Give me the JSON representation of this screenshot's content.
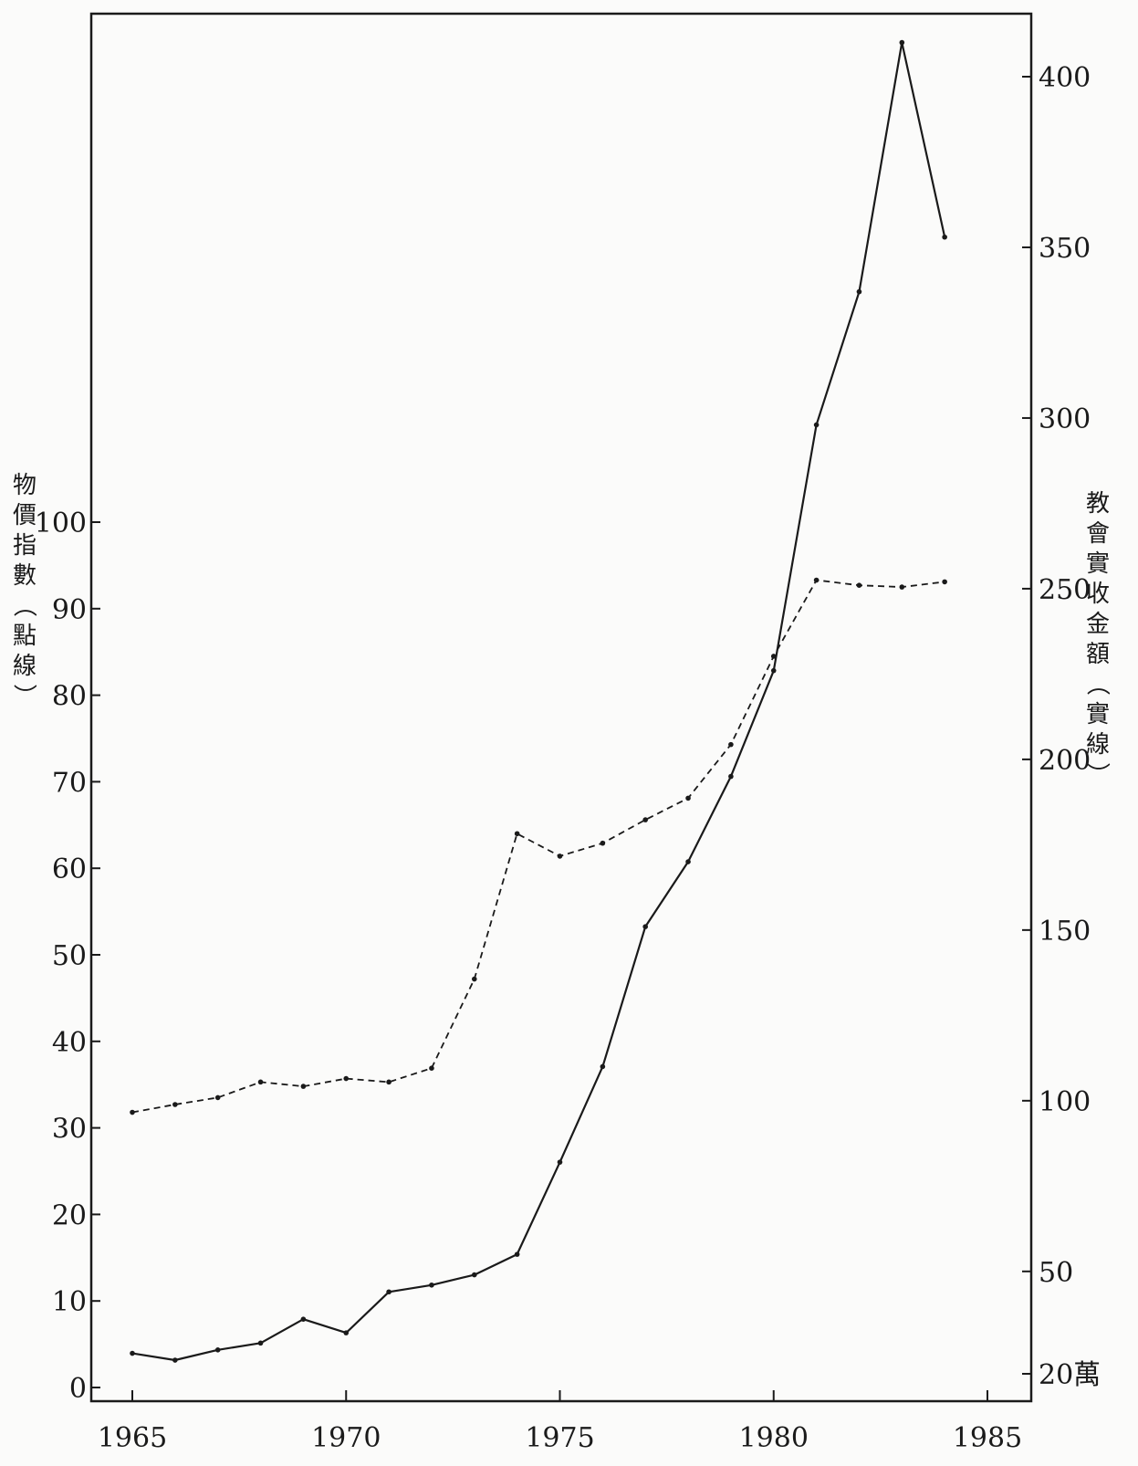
{
  "chart_data": {
    "type": "line",
    "title": "",
    "xlabel": "",
    "x_ticks": [
      "1965",
      "1970",
      "1975",
      "1980",
      "1985"
    ],
    "xlim": [
      1964,
      1986
    ],
    "left_axis": {
      "label": "物價指數（點線）",
      "ylim": [
        0,
        100
      ],
      "ticks": [
        "0",
        "10",
        "20",
        "30",
        "40",
        "50",
        "60",
        "70",
        "80",
        "90",
        "100"
      ]
    },
    "right_axis": {
      "label": "教會實收金額（實線）",
      "ylim": [
        20,
        420
      ],
      "ticks": [
        "20萬",
        "50",
        "100",
        "150",
        "200",
        "250",
        "300",
        "350",
        "400"
      ]
    },
    "series": [
      {
        "name": "物價指數（點線）",
        "axis": "left",
        "style": "dotted",
        "x": [
          1965,
          1966,
          1967,
          1968,
          1969,
          1970,
          1971,
          1972,
          1973,
          1974,
          1975,
          1976,
          1977,
          1978,
          1979,
          1980,
          1981,
          1982,
          1983,
          1984
        ],
        "values": [
          31.8,
          32.7,
          33.5,
          35.3,
          34.8,
          35.7,
          35.3,
          36.9,
          47.2,
          64.0,
          61.4,
          62.9,
          65.6,
          68.1,
          74.3,
          84.5,
          93.3,
          92.7,
          92.5,
          93.1
        ]
      },
      {
        "name": "教會實收金額（實線）",
        "axis": "right",
        "style": "solid",
        "x": [
          1965,
          1966,
          1967,
          1968,
          1969,
          1970,
          1971,
          1972,
          1973,
          1974,
          1975,
          1976,
          1977,
          1978,
          1979,
          1980,
          1981,
          1982,
          1983,
          1984
        ],
        "values": [
          26,
          24,
          27,
          29,
          36,
          32,
          44,
          46,
          49,
          55,
          82,
          110,
          151,
          170,
          195,
          226,
          298,
          337,
          410,
          353
        ]
      }
    ],
    "grid": false,
    "legend": "none"
  }
}
